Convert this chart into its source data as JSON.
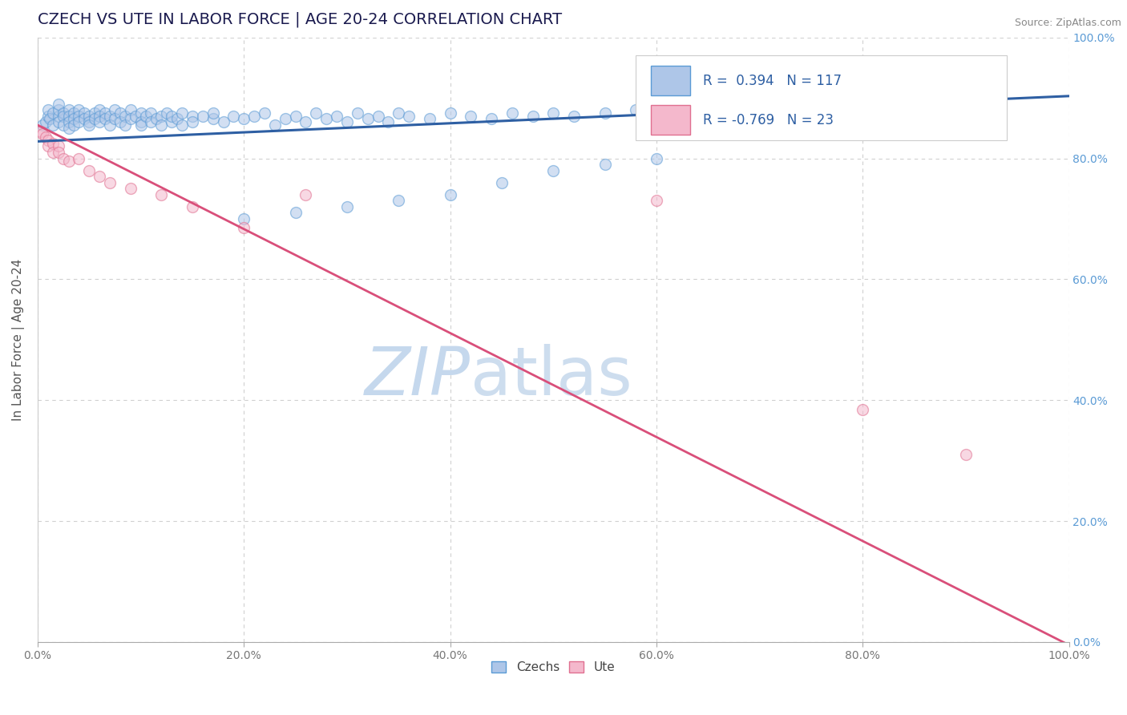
{
  "title": "CZECH VS UTE IN LABOR FORCE | AGE 20-24 CORRELATION CHART",
  "source": "Source: ZipAtlas.com",
  "ylabel": "In Labor Force | Age 20-24",
  "xlim": [
    0,
    1
  ],
  "ylim": [
    0,
    1
  ],
  "czech_r": 0.394,
  "czech_n": 117,
  "ute_r": -0.769,
  "ute_n": 23,
  "czech_color": "#aec6e8",
  "czech_edge_color": "#5b9bd5",
  "ute_color": "#f4b8cc",
  "ute_edge_color": "#e07090",
  "trend_czech_color": "#2e5fa3",
  "trend_ute_color": "#d94f7a",
  "marker_size": 100,
  "alpha": 0.55,
  "watermark_zip": "ZIP",
  "watermark_atlas": "atlas",
  "watermark_color": "#c5d8ed",
  "legend_r_label_color": "#2e5fa3",
  "background_color": "#ffffff",
  "grid_color": "#d0d0d0",
  "title_color": "#1a1a4e",
  "axis_label_color": "#555555",
  "right_tick_color": "#5b9bd5",
  "bottom_tick_color": "#5b9bd5",
  "czech_trend_intercept": 0.828,
  "czech_trend_slope": 0.075,
  "ute_trend_intercept": 0.855,
  "ute_trend_slope": -0.86,
  "czech_x": [
    0.005,
    0.008,
    0.01,
    0.01,
    0.012,
    0.015,
    0.015,
    0.02,
    0.02,
    0.02,
    0.02,
    0.025,
    0.025,
    0.025,
    0.03,
    0.03,
    0.03,
    0.03,
    0.035,
    0.035,
    0.035,
    0.04,
    0.04,
    0.04,
    0.045,
    0.045,
    0.05,
    0.05,
    0.05,
    0.055,
    0.055,
    0.06,
    0.06,
    0.06,
    0.065,
    0.065,
    0.07,
    0.07,
    0.075,
    0.075,
    0.08,
    0.08,
    0.085,
    0.085,
    0.09,
    0.09,
    0.095,
    0.1,
    0.1,
    0.1,
    0.105,
    0.11,
    0.11,
    0.115,
    0.12,
    0.12,
    0.125,
    0.13,
    0.13,
    0.135,
    0.14,
    0.14,
    0.15,
    0.15,
    0.16,
    0.17,
    0.17,
    0.18,
    0.19,
    0.2,
    0.21,
    0.22,
    0.23,
    0.24,
    0.25,
    0.26,
    0.27,
    0.28,
    0.29,
    0.3,
    0.31,
    0.32,
    0.33,
    0.34,
    0.35,
    0.36,
    0.38,
    0.4,
    0.42,
    0.44,
    0.46,
    0.48,
    0.5,
    0.52,
    0.55,
    0.58,
    0.6,
    0.62,
    0.65,
    0.68,
    0.7,
    0.72,
    0.75,
    0.78,
    0.8,
    0.83,
    0.85,
    0.88,
    0.9,
    0.5,
    0.45,
    0.55,
    0.6,
    0.4,
    0.35,
    0.3,
    0.25,
    0.2
  ],
  "czech_y": [
    0.855,
    0.86,
    0.87,
    0.88,
    0.865,
    0.875,
    0.855,
    0.87,
    0.88,
    0.89,
    0.86,
    0.875,
    0.87,
    0.855,
    0.88,
    0.87,
    0.86,
    0.85,
    0.875,
    0.865,
    0.855,
    0.88,
    0.87,
    0.86,
    0.875,
    0.865,
    0.87,
    0.86,
    0.855,
    0.875,
    0.865,
    0.88,
    0.87,
    0.86,
    0.875,
    0.865,
    0.87,
    0.855,
    0.88,
    0.865,
    0.875,
    0.86,
    0.87,
    0.855,
    0.88,
    0.865,
    0.87,
    0.875,
    0.86,
    0.855,
    0.87,
    0.875,
    0.86,
    0.865,
    0.87,
    0.855,
    0.875,
    0.86,
    0.87,
    0.865,
    0.875,
    0.855,
    0.87,
    0.86,
    0.87,
    0.865,
    0.875,
    0.86,
    0.87,
    0.865,
    0.87,
    0.875,
    0.855,
    0.865,
    0.87,
    0.86,
    0.875,
    0.865,
    0.87,
    0.86,
    0.875,
    0.865,
    0.87,
    0.86,
    0.875,
    0.87,
    0.865,
    0.875,
    0.87,
    0.865,
    0.875,
    0.87,
    0.875,
    0.87,
    0.875,
    0.88,
    0.875,
    0.88,
    0.875,
    0.88,
    0.88,
    0.885,
    0.88,
    0.885,
    0.885,
    0.885,
    0.885,
    0.89,
    0.89,
    0.78,
    0.76,
    0.79,
    0.8,
    0.74,
    0.73,
    0.72,
    0.71,
    0.7
  ],
  "ute_x": [
    0.003,
    0.005,
    0.008,
    0.01,
    0.01,
    0.015,
    0.015,
    0.02,
    0.02,
    0.025,
    0.03,
    0.04,
    0.05,
    0.06,
    0.07,
    0.09,
    0.12,
    0.15,
    0.2,
    0.26,
    0.6,
    0.8,
    0.9
  ],
  "ute_y": [
    0.845,
    0.84,
    0.835,
    0.83,
    0.82,
    0.825,
    0.81,
    0.82,
    0.81,
    0.8,
    0.795,
    0.8,
    0.78,
    0.77,
    0.76,
    0.75,
    0.74,
    0.72,
    0.685,
    0.74,
    0.73,
    0.385,
    0.31
  ]
}
